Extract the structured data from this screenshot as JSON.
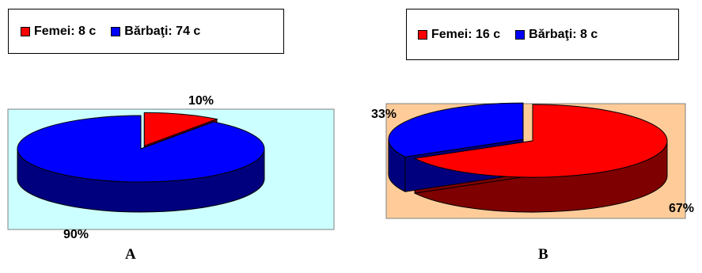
{
  "chart_data": [
    {
      "type": "pie",
      "style": "3d-exploded",
      "caption": "A",
      "legend": {
        "placement": "top",
        "items": [
          {
            "label": "Femei: 8 c",
            "color": "#ff0000"
          },
          {
            "label": "Bărbaţi: 74 c",
            "color": "#0000ff"
          }
        ]
      },
      "slices": [
        {
          "name": "Femei",
          "value": 10,
          "label": "10%",
          "color": "#ff0000",
          "side_color": "#7f0000"
        },
        {
          "name": "Bărbaţi",
          "value": 90,
          "label": "90%",
          "color": "#0000ff",
          "side_color": "#00007f"
        }
      ],
      "plot_background": "#ccffff"
    },
    {
      "type": "pie",
      "style": "3d-exploded",
      "caption": "B",
      "legend": {
        "placement": "top",
        "items": [
          {
            "label": "Femei: 16 c",
            "color": "#ff0000"
          },
          {
            "label": "Bărbaţi: 8 c",
            "color": "#0000ff"
          }
        ]
      },
      "slices": [
        {
          "name": "Femei",
          "value": 67,
          "label": "67%",
          "color": "#ff0000",
          "side_color": "#7f0000"
        },
        {
          "name": "Bărbaţi",
          "value": 33,
          "label": "33%",
          "color": "#0000ff",
          "side_color": "#00007f"
        }
      ],
      "plot_background": "#ffcc99"
    }
  ]
}
